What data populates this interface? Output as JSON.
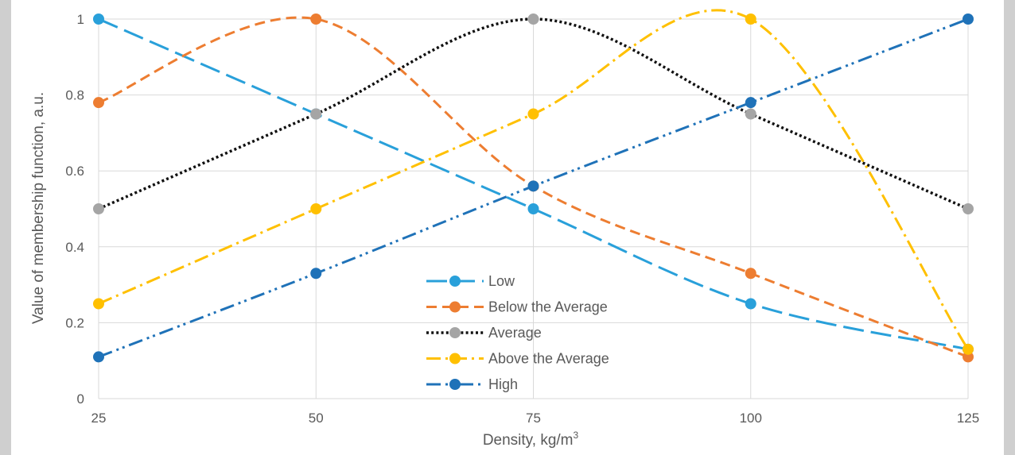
{
  "chart_data": {
    "type": "line",
    "title": "",
    "xlabel": "Density, kg/m",
    "xlabel_superscript": "3",
    "ylabel": "Value of membership function, a.u.",
    "x": [
      25,
      50,
      75,
      100,
      125
    ],
    "xlim": [
      25,
      125
    ],
    "ylim": [
      0,
      1
    ],
    "y_ticks": [
      "0",
      "0.2",
      "0.4",
      "0.6",
      "0.8",
      "1"
    ],
    "x_ticks": [
      "25",
      "50",
      "75",
      "100",
      "125"
    ],
    "grid": true,
    "smooth": true,
    "legend_position": "center-bottom",
    "series": [
      {
        "name": "Low",
        "values": [
          1.0,
          0.75,
          0.5,
          0.25,
          0.13
        ],
        "color": "#29a0da",
        "dash": "long-dash",
        "marker": "circle"
      },
      {
        "name": "Below the Average",
        "values": [
          0.78,
          1.0,
          0.56,
          0.33,
          0.11
        ],
        "color": "#ed7d31",
        "dash": "dash",
        "marker": "circle"
      },
      {
        "name": "Average",
        "values": [
          0.5,
          0.75,
          1.0,
          0.75,
          0.5
        ],
        "color": "#111111",
        "dash": "dot",
        "marker": "circle",
        "marker_color": "#a5a5a5"
      },
      {
        "name": "Above the Average",
        "values": [
          0.25,
          0.5,
          0.75,
          1.0,
          0.13
        ],
        "color": "#ffc000",
        "dash": "dash-dot",
        "marker": "circle"
      },
      {
        "name": "High",
        "values": [
          0.11,
          0.33,
          0.56,
          0.78,
          1.0
        ],
        "color": "#1f72b8",
        "dash": "dash-dot-dot",
        "marker": "circle"
      }
    ]
  }
}
